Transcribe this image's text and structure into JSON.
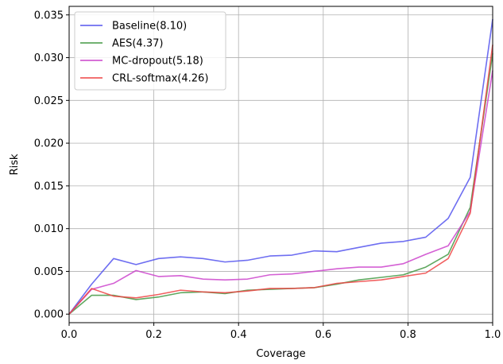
{
  "chart_data": {
    "type": "line",
    "xlabel": "Coverage",
    "ylabel": "Risk",
    "xlim": [
      0.0,
      1.0
    ],
    "ylim": [
      -0.001,
      0.036
    ],
    "x_ticks": [
      0.0,
      0.2,
      0.4,
      0.6,
      0.8,
      1.0
    ],
    "x_tick_labels": [
      "0.0",
      "0.2",
      "0.4",
      "0.6",
      "0.8",
      "1.0"
    ],
    "y_ticks": [
      0.0,
      0.005,
      0.01,
      0.015,
      0.02,
      0.025,
      0.03,
      0.035
    ],
    "y_tick_labels": [
      "0.000",
      "0.005",
      "0.010",
      "0.015",
      "0.020",
      "0.025",
      "0.030",
      "0.035"
    ],
    "grid": true,
    "legend_position": "top-left",
    "x": [
      0.0,
      0.053,
      0.105,
      0.158,
      0.211,
      0.263,
      0.316,
      0.368,
      0.421,
      0.474,
      0.526,
      0.579,
      0.632,
      0.684,
      0.737,
      0.789,
      0.842,
      0.895,
      0.947,
      1.0
    ],
    "series": [
      {
        "name": "Baseline(8.10)",
        "color": "#5555ee",
        "values": [
          0.0,
          0.0035,
          0.0065,
          0.0058,
          0.0065,
          0.0067,
          0.0065,
          0.0061,
          0.0063,
          0.0068,
          0.0069,
          0.0074,
          0.0073,
          0.0078,
          0.0083,
          0.0085,
          0.009,
          0.0112,
          0.016,
          0.0345
        ]
      },
      {
        "name": "AES(4.37)",
        "color": "#449944",
        "values": [
          0.0,
          0.0022,
          0.0022,
          0.0017,
          0.002,
          0.0025,
          0.0026,
          0.0024,
          0.0028,
          0.0029,
          0.003,
          0.0031,
          0.0035,
          0.004,
          0.0043,
          0.0046,
          0.0055,
          0.007,
          0.0125,
          0.0305
        ]
      },
      {
        "name": "MC-dropout(5.18)",
        "color": "#cc44cc",
        "values": [
          0.0,
          0.0029,
          0.0036,
          0.0051,
          0.0044,
          0.0045,
          0.0041,
          0.004,
          0.0041,
          0.0046,
          0.0047,
          0.005,
          0.0053,
          0.0055,
          0.0055,
          0.0059,
          0.007,
          0.008,
          0.012,
          0.0285
        ]
      },
      {
        "name": "CRL-softmax(4.26)",
        "color": "#ee4444",
        "values": [
          0.0,
          0.003,
          0.0021,
          0.0019,
          0.0023,
          0.0028,
          0.0026,
          0.0025,
          0.0027,
          0.003,
          0.003,
          0.0031,
          0.0036,
          0.0038,
          0.004,
          0.0044,
          0.0048,
          0.0065,
          0.0118,
          0.0315
        ]
      }
    ]
  }
}
